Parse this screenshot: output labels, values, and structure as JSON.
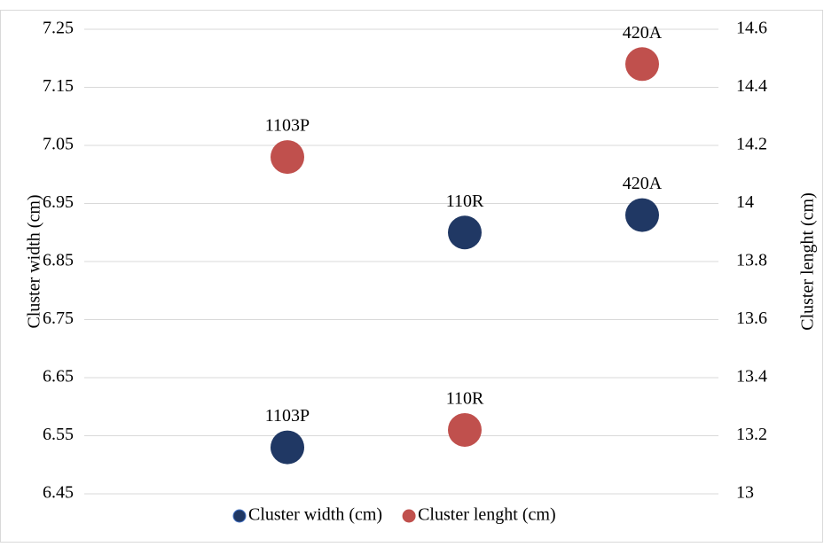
{
  "chart_data": {
    "type": "scatter",
    "categories": [
      "1103P",
      "110R",
      "420A"
    ],
    "y_label": "Cluster width (cm)",
    "y2_label": "Cluster lenght (cm)",
    "series": [
      {
        "name": "Cluster width (cm)",
        "color": "#203864",
        "values": [
          6.53,
          6.9,
          6.93
        ]
      },
      {
        "name": "Cluster lenght (cm)",
        "color": "#c0504d",
        "axis": "y2",
        "values": [
          14.16,
          13.22,
          14.48
        ]
      }
    ],
    "ylim": [
      6.45,
      7.25
    ],
    "yticks": [
      {
        "value": 6.45,
        "label": "6.45"
      },
      {
        "value": 6.55,
        "label": "6.55"
      },
      {
        "value": 6.65,
        "label": "6.65"
      },
      {
        "value": 6.75,
        "label": "6.75"
      },
      {
        "value": 6.85,
        "label": "6.85"
      },
      {
        "value": 6.95,
        "label": "6.95"
      },
      {
        "value": 7.05,
        "label": "7.05"
      },
      {
        "value": 7.15,
        "label": "7.15"
      },
      {
        "value": 7.25,
        "label": "7.25"
      }
    ],
    "y2lim": [
      13,
      14.6
    ],
    "y2ticks": [
      13,
      {
        "value": 13.2,
        "label": "13.2"
      },
      {
        "value": 13.4,
        "label": "13.4"
      },
      {
        "value": 13.6,
        "label": "13.6"
      },
      {
        "value": 13.8,
        "label": "13.8"
      },
      14,
      {
        "value": 14.2,
        "label": "14.2"
      },
      {
        "value": 14.4,
        "label": "14.4"
      },
      {
        "value": 14.6,
        "label": "14.6"
      }
    ],
    "grid": true
  }
}
